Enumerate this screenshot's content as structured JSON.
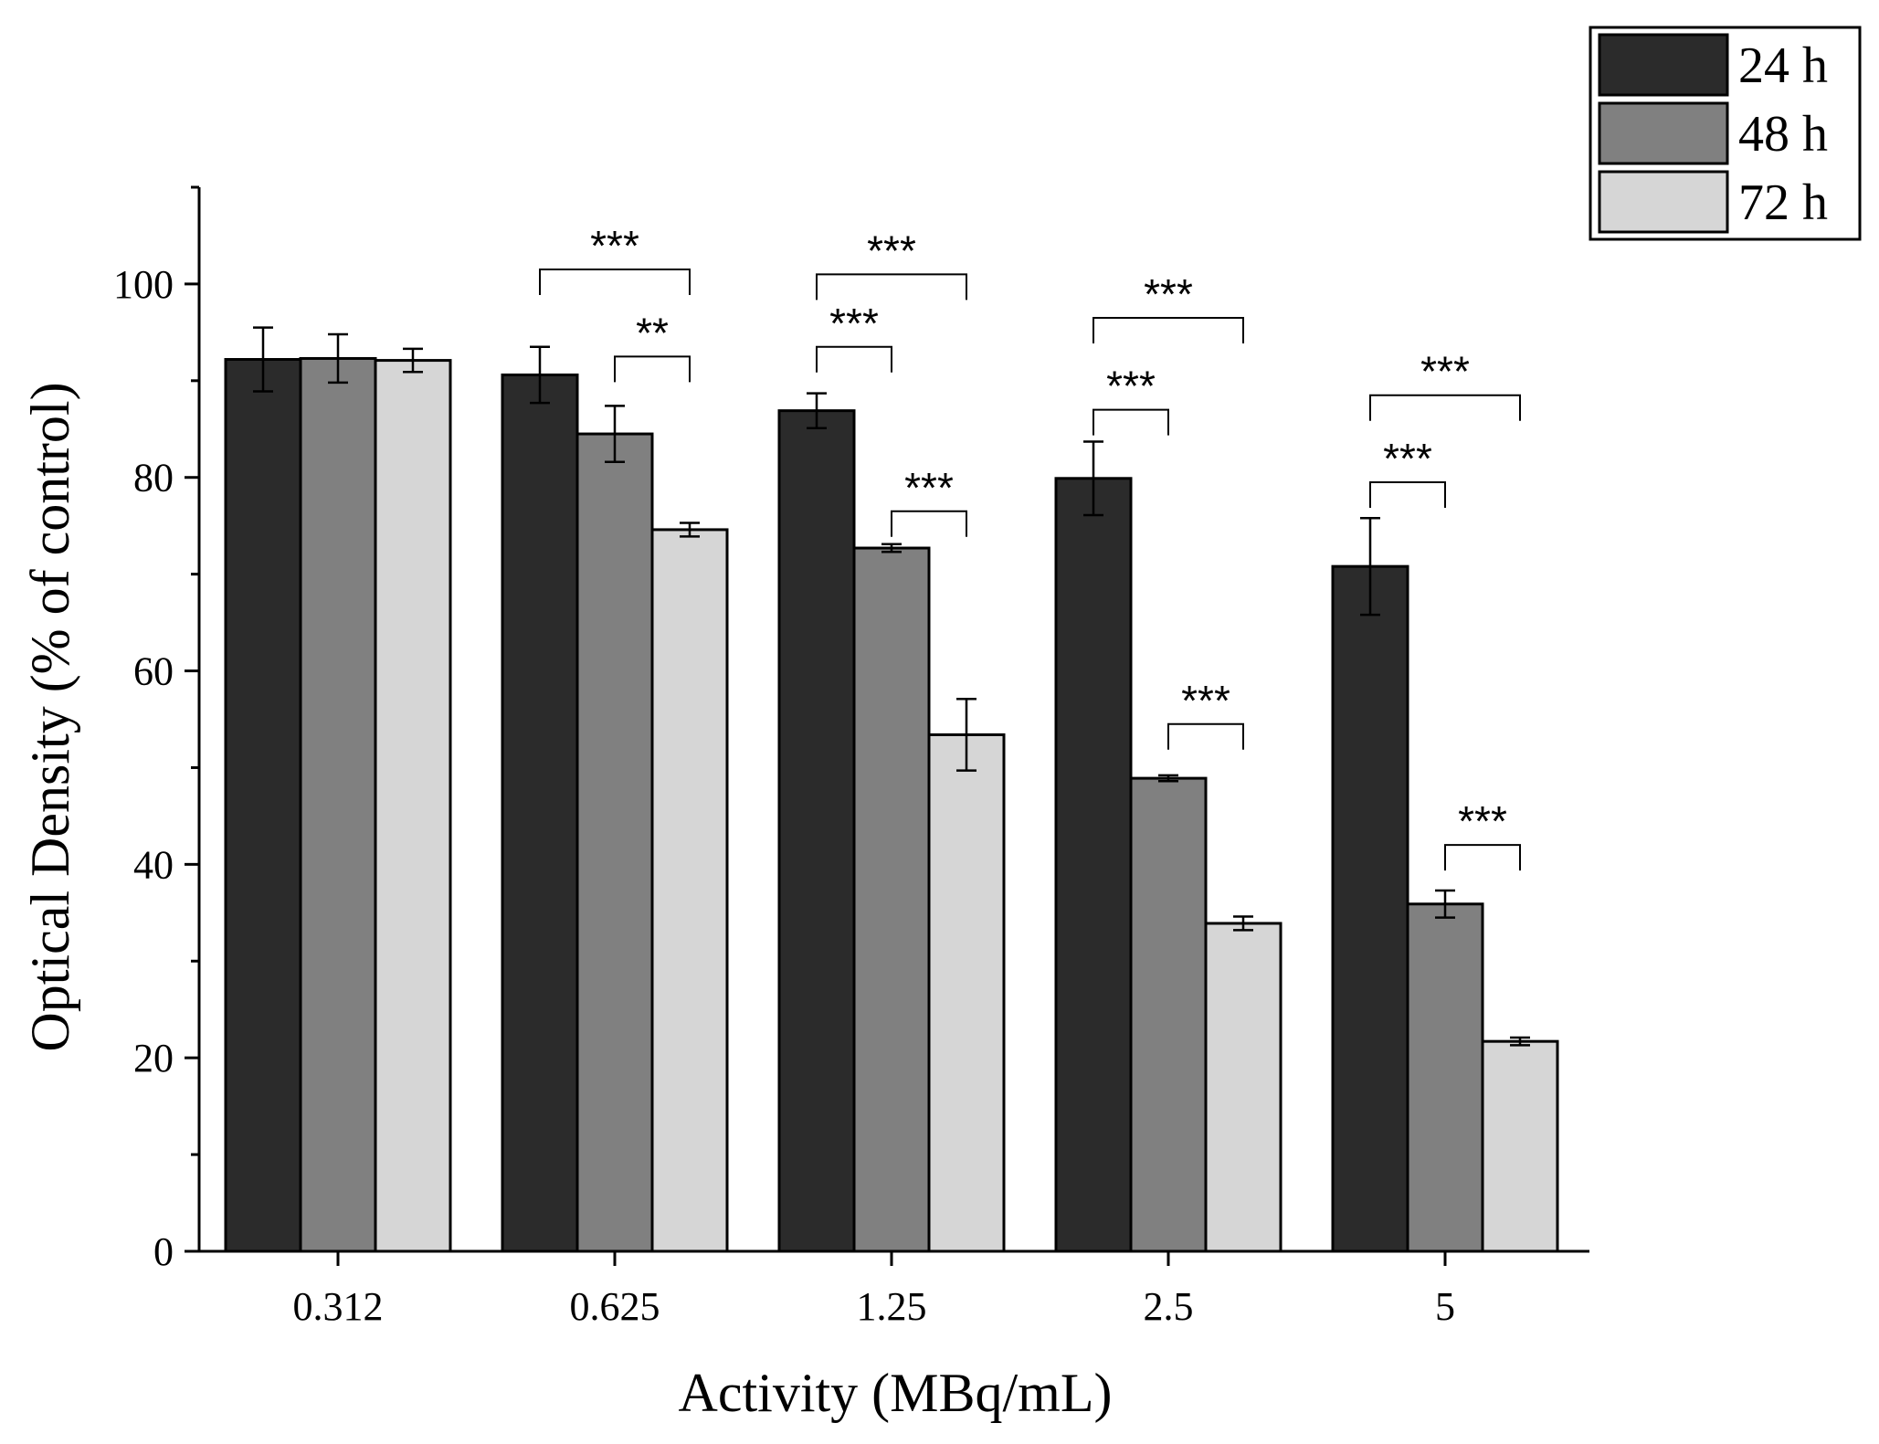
{
  "chart_data": {
    "type": "bar",
    "title": "",
    "xlabel": "Activity (MBq/mL)",
    "ylabel": "Optical Density (% of control)",
    "categories": [
      "0.312",
      "0.625",
      "1.25",
      "2.5",
      "5"
    ],
    "ylim": [
      0,
      110
    ],
    "yticks": [
      0,
      20,
      40,
      60,
      80,
      100
    ],
    "grid": false,
    "legend_position": "top-right",
    "series": [
      {
        "name": "24 h",
        "color": "#2b2b2b",
        "values": [
          92.2,
          90.6,
          86.9,
          79.9,
          70.8
        ],
        "errors": [
          3.3,
          2.9,
          1.8,
          3.8,
          5.0
        ]
      },
      {
        "name": "48 h",
        "color": "#808080",
        "values": [
          92.3,
          84.5,
          72.7,
          48.9,
          35.9
        ],
        "errors": [
          2.5,
          2.9,
          0.4,
          0.3,
          1.4
        ]
      },
      {
        "name": "72 h",
        "color": "#d6d6d6",
        "values": [
          92.1,
          74.6,
          53.4,
          33.9,
          21.7
        ],
        "errors": [
          1.2,
          0.7,
          3.7,
          0.7,
          0.4
        ]
      }
    ],
    "significance": [
      {
        "category": 1,
        "from": 0,
        "to": 2,
        "label": "***",
        "y": 101.5
      },
      {
        "category": 1,
        "from": 1,
        "to": 2,
        "label": "**",
        "y": 92.5
      },
      {
        "category": 2,
        "from": 0,
        "to": 2,
        "label": "***",
        "y": 101.0
      },
      {
        "category": 2,
        "from": 0,
        "to": 1,
        "label": "***",
        "y": 93.5
      },
      {
        "category": 2,
        "from": 1,
        "to": 2,
        "label": "***",
        "y": 76.5
      },
      {
        "category": 3,
        "from": 0,
        "to": 2,
        "label": "***",
        "y": 96.5
      },
      {
        "category": 3,
        "from": 0,
        "to": 1,
        "label": "***",
        "y": 87.0
      },
      {
        "category": 3,
        "from": 1,
        "to": 2,
        "label": "***",
        "y": 54.5
      },
      {
        "category": 4,
        "from": 0,
        "to": 2,
        "label": "***",
        "y": 88.5
      },
      {
        "category": 4,
        "from": 0,
        "to": 1,
        "label": "***",
        "y": 79.5
      },
      {
        "category": 4,
        "from": 1,
        "to": 2,
        "label": "***",
        "y": 42.0
      }
    ]
  }
}
